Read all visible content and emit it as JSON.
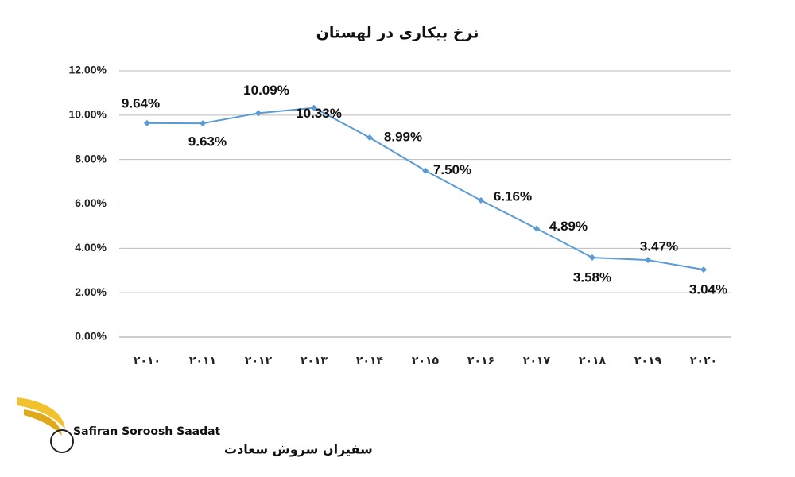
{
  "chart_data": {
    "type": "line",
    "title": "نرخ بیکاری در لهستان",
    "categories": [
      "۲۰۱۰",
      "۲۰۱۱",
      "۲۰۱۲",
      "۲۰۱۳",
      "۲۰۱۴",
      "۲۰۱۵",
      "۲۰۱۶",
      "۲۰۱۷",
      "۲۰۱۸",
      "۲۰۱۹",
      "۲۰۲۰"
    ],
    "values": [
      9.64,
      9.63,
      10.09,
      10.33,
      8.99,
      7.5,
      6.16,
      4.89,
      3.58,
      3.47,
      3.04
    ],
    "value_labels": [
      "9.64%",
      "9.63%",
      "10.09%",
      "10.33%",
      "8.99%",
      "7.50%",
      "6.16%",
      "4.89%",
      "3.58%",
      "3.47%",
      "3.04%"
    ],
    "color": "#5b9bd5",
    "ylim": [
      0,
      12
    ],
    "yticks": [
      {
        "value": 0,
        "label": "0.00%"
      },
      {
        "value": 2,
        "label": "2.00%"
      },
      {
        "value": 4,
        "label": "4.00%"
      },
      {
        "value": 6,
        "label": "6.00%"
      },
      {
        "value": 8,
        "label": "8.00%"
      },
      {
        "value": 10,
        "label": "10.00%"
      },
      {
        "value": 12,
        "label": "12.00%"
      }
    ],
    "grid": true
  },
  "logo": {
    "name": "Safiran Soroosh Saadat",
    "name_fa": "سفیران سروش سعادت"
  }
}
